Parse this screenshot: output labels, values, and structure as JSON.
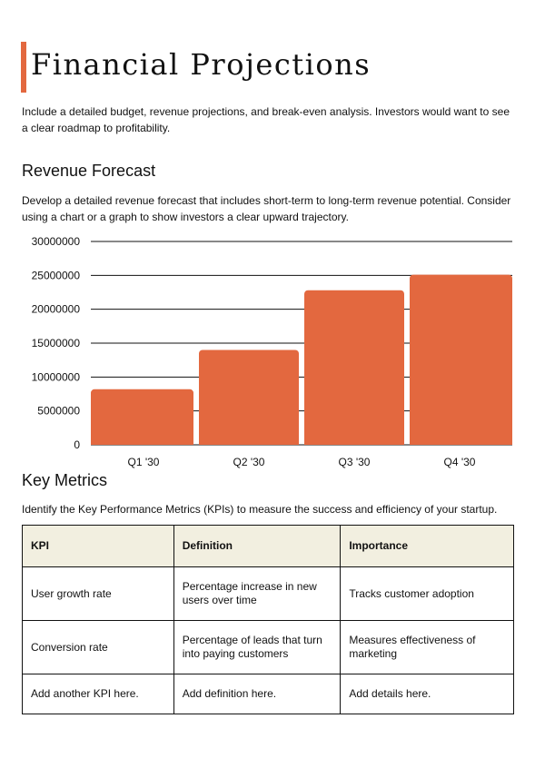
{
  "header": {
    "title": "Financial Projections",
    "accent_color": "#e3683f"
  },
  "intro": "Include a detailed budget, revenue projections, and break-even analysis. Investors would want to see a clear roadmap to profitability.",
  "revenue": {
    "heading": "Revenue Forecast",
    "description": "Develop a detailed revenue forecast that includes short-term to long-term revenue potential. Consider using a chart or a graph to show investors a clear upward trajectory."
  },
  "chart_data": {
    "type": "bar",
    "categories": [
      "Q1 '30",
      "Q2 '30",
      "Q3 '30",
      "Q4 '30"
    ],
    "values": [
      8200000,
      14000000,
      22800000,
      25100000
    ],
    "yticks": [
      "0",
      "5000000",
      "10000000",
      "15000000",
      "20000000",
      "25000000",
      "30000000"
    ],
    "ylim": [
      0,
      30000000
    ],
    "grid": true,
    "bar_color": "#e3683f"
  },
  "kpi": {
    "heading": "Key Metrics",
    "description": "Identify the Key Performance Metrics (KPIs) to measure the success and efficiency of your startup.",
    "columns": [
      "KPI",
      "Definition",
      "Importance"
    ],
    "rows": [
      [
        "User growth rate",
        "Percentage increase in new users over time",
        "Tracks customer adoption"
      ],
      [
        "Conversion rate",
        "Percentage of leads that turn into paying customers",
        "Measures effectiveness of marketing"
      ],
      [
        "Add another KPI here.",
        "Add definition here.",
        "Add details here."
      ]
    ],
    "header_bg": "#f2efe0"
  }
}
